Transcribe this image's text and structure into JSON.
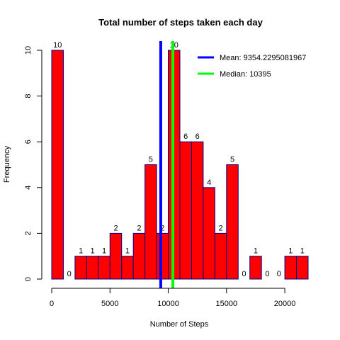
{
  "chart_data": {
    "type": "bar",
    "title": "Total number of steps taken each day",
    "xlabel": "Number of Steps",
    "ylabel": "Frequency",
    "bin_width": 1000,
    "bins_start": [
      0,
      1000,
      2000,
      3000,
      4000,
      5000,
      6000,
      7000,
      8000,
      9000,
      10000,
      11000,
      12000,
      13000,
      14000,
      15000,
      16000,
      17000,
      18000,
      19000,
      20000,
      21000
    ],
    "values": [
      10,
      0,
      1,
      1,
      1,
      2,
      1,
      2,
      5,
      2,
      10,
      6,
      6,
      4,
      2,
      5,
      0,
      1,
      0,
      0,
      1,
      1
    ],
    "xlim": [
      0,
      22000
    ],
    "ylim": [
      0,
      10
    ],
    "x_ticks": [
      0,
      5000,
      10000,
      15000,
      20000
    ],
    "y_ticks": [
      0,
      2,
      4,
      6,
      8,
      10
    ],
    "bar_color": "#ff0000",
    "bar_border_color": "#00008b",
    "reference_lines": [
      {
        "name": "Mean",
        "value": 9354.2295081967,
        "color": "#0000ff"
      },
      {
        "name": "Median",
        "value": 10395,
        "color": "#00ff00"
      }
    ],
    "legend": {
      "position": "top-right",
      "entries": [
        "Mean: 9354.2295081967",
        "Median: 10395"
      ]
    },
    "grid": false
  }
}
